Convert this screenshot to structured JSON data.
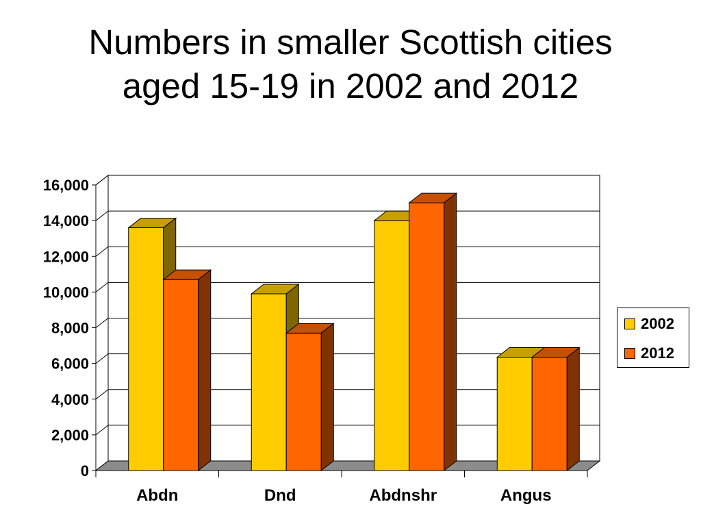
{
  "title": {
    "line1": "Numbers in smaller Scottish cities",
    "line2": "aged 15-19 in 2002 and 2012"
  },
  "chart_data": {
    "type": "bar",
    "title": "Numbers in smaller Scottish cities aged 15-19 in 2002 and 2012",
    "categories": [
      "Abdn",
      "Dnd",
      "Abdnshr",
      "Angus"
    ],
    "series": [
      {
        "name": "2002",
        "values": [
          13600,
          9900,
          14000,
          6350
        ],
        "color": "#FFCC00"
      },
      {
        "name": "2012",
        "values": [
          10700,
          7700,
          15000,
          6350
        ],
        "color": "#FF6600"
      }
    ],
    "ylim": [
      0,
      16000
    ],
    "yticks": [
      0,
      2000,
      4000,
      6000,
      8000,
      10000,
      12000,
      14000,
      16000
    ],
    "ytick_labels": [
      "0",
      "2,000",
      "4,000",
      "6,000",
      "8,000",
      "10,000",
      "12,000",
      "14,000",
      "16,000"
    ],
    "grid": true,
    "legend_position": "right",
    "style": "3d-clustered-column"
  }
}
